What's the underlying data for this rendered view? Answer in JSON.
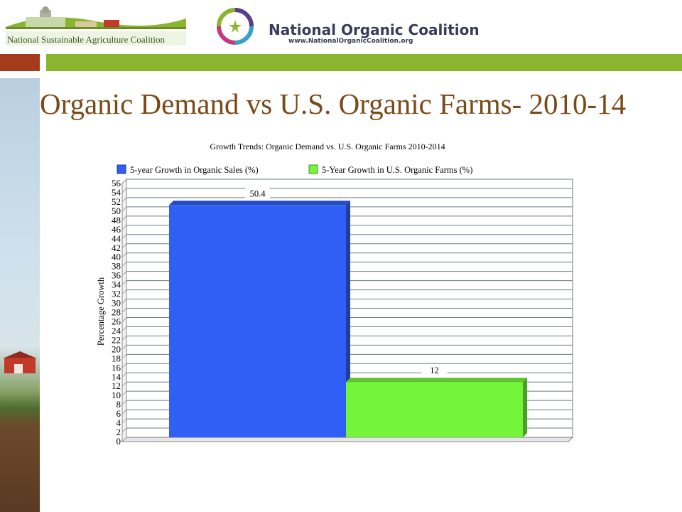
{
  "header": {
    "logo_left_text": "National Sustainable Agriculture Coalition",
    "logo_right_name": "National Organic Coalition",
    "logo_right_url": "www.NationalOrganicCoalition.org"
  },
  "slide": {
    "title": "Organic Demand vs U.S. Organic Farms- 2010-14"
  },
  "colors": {
    "accent_green": "#8ab62f",
    "accent_red": "#a63a1c",
    "title_brown": "#7a4a18",
    "series_blue": "#2f5ff5",
    "series_green": "#74f53a"
  },
  "chart_data": {
    "type": "bar",
    "title": "Growth Trends:  Organic Demand vs. U.S. Organic Farms  2010-2014",
    "xlabel": "",
    "ylabel": "Percentage Growth",
    "ylim": [
      0,
      56
    ],
    "y_tick_step": 2,
    "grid": true,
    "legend_position": "top",
    "series": [
      {
        "name": "5-year Growth in Organic Sales (%)",
        "value": 50.4,
        "label": "50.4",
        "color": "#2f5ff5"
      },
      {
        "name": "5-Year Growth in U.S. Organic Farms (%)",
        "value": 12,
        "label": "12",
        "color": "#74f53a"
      }
    ]
  }
}
